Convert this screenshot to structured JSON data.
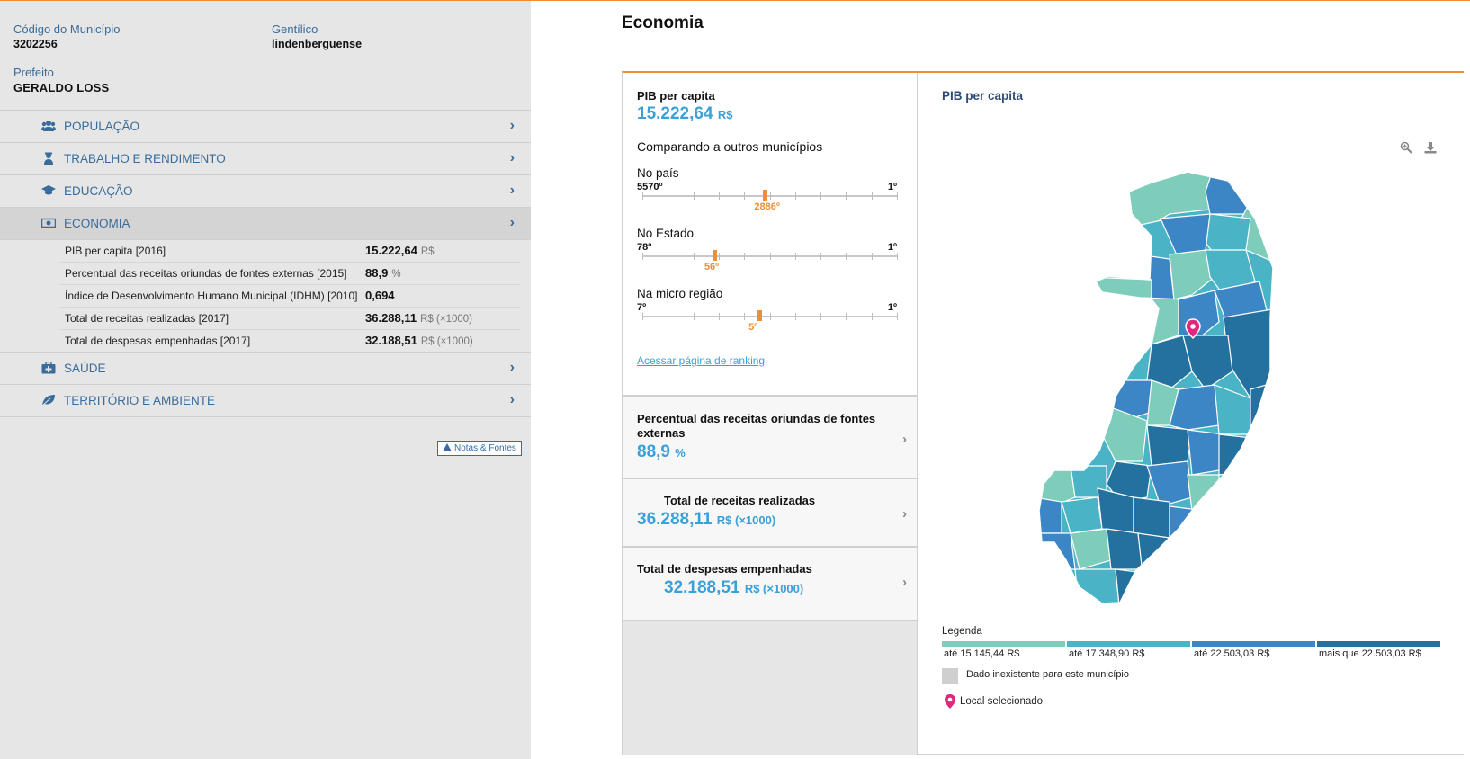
{
  "municipio": {
    "codigo_label": "Código do Município",
    "codigo": "3202256",
    "gentilico_label": "Gentílico",
    "gentilico": "lindenberguense",
    "prefeito_label": "Prefeito",
    "prefeito": "GERALDO LOSS"
  },
  "menu": [
    {
      "label": "POPULAÇÃO",
      "icon": "people-icon"
    },
    {
      "label": "TRABALHO E RENDIMENTO",
      "icon": "worker-icon"
    },
    {
      "label": "EDUCAÇÃO",
      "icon": "graduation-cap-icon"
    },
    {
      "label": "ECONOMIA",
      "icon": "money-icon"
    },
    {
      "label": "SAÚDE",
      "icon": "medkit-icon"
    },
    {
      "label": "TERRITÓRIO E AMBIENTE",
      "icon": "leaf-icon"
    }
  ],
  "economia_rows": [
    {
      "label": "PIB per capita [2016]",
      "value": "15.222,64",
      "unit": "R$"
    },
    {
      "label": "Percentual das receitas oriundas de fontes externas [2015]",
      "value": "88,9",
      "unit": "%"
    },
    {
      "label": "Índice de Desenvolvimento Humano Municipal (IDHM) [2010]",
      "value": "0,694",
      "unit": ""
    },
    {
      "label": "Total de receitas realizadas [2017]",
      "value": "36.288,11",
      "unit": "R$ (×1000)"
    },
    {
      "label": "Total de despesas empenhadas [2017]",
      "value": "32.188,51",
      "unit": "R$ (×1000)"
    }
  ],
  "notas_label": "Notas & Fontes",
  "page_title": "Economia",
  "ranking": {
    "title": "PIB per capita",
    "value": "15.222,64",
    "unit": "R$",
    "compare_label": "Comparando a outros municípios",
    "scales": [
      {
        "name": "No país",
        "lo": "5570º",
        "hi": "1º",
        "pos": "2886º",
        "fraction": 0.482
      },
      {
        "name": "No Estado",
        "lo": "78º",
        "hi": "1º",
        "pos": "56º",
        "fraction": 0.286
      },
      {
        "name": "Na micro região",
        "lo": "7º",
        "hi": "1º",
        "pos": "5º",
        "fraction": 0.46
      }
    ],
    "link": "Acessar página de ranking"
  },
  "cards": [
    {
      "title": "Percentual das receitas oriundas de fontes externas",
      "value": "88,9",
      "unit": "%"
    },
    {
      "title": "Total de receitas realizadas",
      "value": "36.288,11",
      "unit": "R$ (×1000)"
    },
    {
      "title": "Total de despesas empenhadas",
      "value": "32.188,51",
      "unit": "R$ (×1000)"
    }
  ],
  "map": {
    "title": "PIB per capita",
    "legend_title": "Legenda",
    "legend": [
      {
        "label": "até 15.145,44 R$",
        "color": "#7ecdbb"
      },
      {
        "label": "até 17.348,90 R$",
        "color": "#4bb3c6"
      },
      {
        "label": "até 22.503,03 R$",
        "color": "#3d86c6"
      },
      {
        "label": "mais que 22.503,03 R$",
        "color": "#2471a0"
      }
    ],
    "no_data_label": "Dado inexistente para este município",
    "no_data_color": "#cfcfcf",
    "selected_label": "Local selecionado",
    "selected_color": "#e0287d"
  }
}
